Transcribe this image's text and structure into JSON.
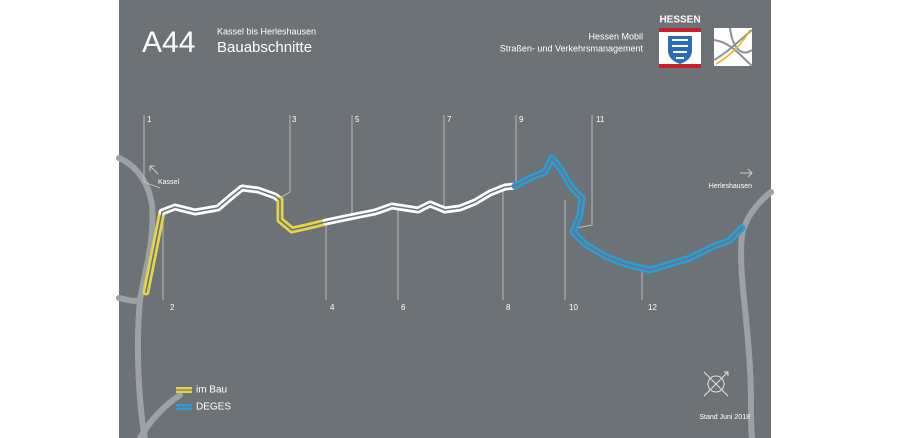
{
  "header": {
    "title": "A44",
    "subtitle": "Kassel bis Herleshausen",
    "heading": "Bauabschnitte"
  },
  "agency": {
    "name": "Hessen Mobil",
    "department": "Straßen- und Verkehrsmanagement",
    "state": "HESSEN"
  },
  "map": {
    "places": [
      "Kassel",
      "Herleshausen"
    ],
    "sections": [
      "1",
      "2",
      "3",
      "4",
      "5",
      "6",
      "7",
      "8",
      "9",
      "10",
      "11",
      "12"
    ]
  },
  "legend": [
    {
      "label": "im Bau",
      "color": "#e6d448"
    },
    {
      "label": "DEGES",
      "color": "#2b9cd6"
    }
  ],
  "footer": {
    "date": "Stand Juni 2018"
  }
}
